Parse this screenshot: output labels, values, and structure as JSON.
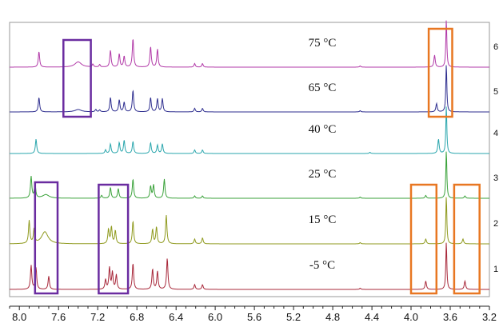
{
  "chart_data": {
    "type": "line",
    "title": "",
    "xlabel": "",
    "ylabel": "",
    "x_axis": {
      "direction": "reversed",
      "range_ppm": [
        8.1,
        3.2
      ],
      "tick_labels": [
        "8.0",
        "7.6",
        "7.2",
        "6.8",
        "6.4",
        "6.0",
        "5.6",
        "5.2",
        "4.8",
        "4.4",
        "4.0",
        "3.6",
        "3.2"
      ]
    },
    "right_edge_labels": [
      "6",
      "5",
      "4",
      "3",
      "2",
      "1"
    ],
    "colors": {
      "75": "#b23aa8",
      "65": "#2e2e8f",
      "40": "#2aa6ad",
      "25": "#3aa23a",
      "15": "#8f9a1e",
      "-5": "#a8283a",
      "box_purple": "#6a2ca0",
      "box_orange": "#e87722",
      "frame": "#9a9a9a"
    },
    "series": [
      {
        "name": "75 °C",
        "label": "75 °C",
        "color_key": "75",
        "peaks": [
          [
            7.8,
            0.65
          ],
          [
            7.4,
            0.22
          ],
          [
            7.25,
            0.12
          ],
          [
            7.18,
            0.1
          ],
          [
            7.07,
            0.7
          ],
          [
            6.98,
            0.55
          ],
          [
            6.93,
            0.45
          ],
          [
            6.84,
            1.2
          ],
          [
            6.66,
            0.85
          ],
          [
            6.59,
            0.75
          ],
          [
            6.21,
            0.15
          ],
          [
            6.13,
            0.15
          ],
          [
            4.52,
            0.05
          ],
          [
            3.76,
            0.5
          ],
          [
            3.64,
            2.0
          ]
        ]
      },
      {
        "name": "65 °C",
        "label": "65 °C",
        "color_key": "65",
        "peaks": [
          [
            7.8,
            0.6
          ],
          [
            7.4,
            0.1
          ],
          [
            7.22,
            0.1
          ],
          [
            7.18,
            0.08
          ],
          [
            7.07,
            0.6
          ],
          [
            6.98,
            0.5
          ],
          [
            6.93,
            0.4
          ],
          [
            6.84,
            0.9
          ],
          [
            6.66,
            0.6
          ],
          [
            6.59,
            0.55
          ],
          [
            6.54,
            0.55
          ],
          [
            6.21,
            0.15
          ],
          [
            6.13,
            0.15
          ],
          [
            4.52,
            0.05
          ],
          [
            3.74,
            0.35
          ],
          [
            3.64,
            2.0
          ]
        ]
      },
      {
        "name": "40 °C",
        "label": "40 °C",
        "color_key": "40",
        "peaks": [
          [
            7.83,
            0.6
          ],
          [
            7.12,
            0.15
          ],
          [
            7.07,
            0.4
          ],
          [
            6.98,
            0.45
          ],
          [
            6.93,
            0.55
          ],
          [
            6.84,
            0.5
          ],
          [
            6.66,
            0.45
          ],
          [
            6.59,
            0.35
          ],
          [
            6.54,
            0.4
          ],
          [
            6.21,
            0.15
          ],
          [
            6.13,
            0.15
          ],
          [
            4.42,
            0.05
          ],
          [
            3.72,
            0.6
          ],
          [
            3.64,
            2.0
          ]
        ]
      },
      {
        "name": "25 °C",
        "label": "25 °C",
        "color_key": "25",
        "peaks": [
          [
            7.88,
            0.9
          ],
          [
            7.84,
            0.6
          ],
          [
            7.73,
            0.15
          ],
          [
            7.16,
            0.12
          ],
          [
            7.07,
            0.45
          ],
          [
            6.99,
            0.4
          ],
          [
            6.84,
            0.8
          ],
          [
            6.66,
            0.5
          ],
          [
            6.63,
            0.55
          ],
          [
            6.52,
            0.8
          ],
          [
            6.21,
            0.1
          ],
          [
            6.13,
            0.1
          ],
          [
            4.52,
            0.05
          ],
          [
            3.85,
            0.12
          ],
          [
            3.64,
            2.0
          ],
          [
            3.45,
            0.1
          ]
        ]
      },
      {
        "name": "15 °C",
        "label": "15 °C",
        "color_key": "15",
        "peaks": [
          [
            7.9,
            0.95
          ],
          [
            7.85,
            0.6
          ],
          [
            7.74,
            0.5
          ],
          [
            7.09,
            0.6
          ],
          [
            7.06,
            0.7
          ],
          [
            7.02,
            0.55
          ],
          [
            6.84,
            0.95
          ],
          [
            6.64,
            0.6
          ],
          [
            6.6,
            0.7
          ],
          [
            6.5,
            1.2
          ],
          [
            6.21,
            0.2
          ],
          [
            6.13,
            0.25
          ],
          [
            4.52,
            0.05
          ],
          [
            3.85,
            0.2
          ],
          [
            3.64,
            2.0
          ],
          [
            3.47,
            0.2
          ]
        ]
      },
      {
        "name": "-5 °C",
        "label": "-5 °C",
        "color_key": "-5",
        "peaks": [
          [
            7.88,
            1.0
          ],
          [
            7.83,
            0.9
          ],
          [
            7.7,
            0.55
          ],
          [
            7.12,
            0.4
          ],
          [
            7.08,
            0.9
          ],
          [
            7.05,
            0.7
          ],
          [
            7.01,
            0.6
          ],
          [
            6.84,
            1.1
          ],
          [
            6.64,
            0.85
          ],
          [
            6.59,
            0.75
          ],
          [
            6.49,
            1.3
          ],
          [
            6.21,
            0.2
          ],
          [
            6.13,
            0.2
          ],
          [
            4.52,
            0.05
          ],
          [
            3.85,
            0.35
          ],
          [
            3.64,
            2.0
          ],
          [
            3.45,
            0.35
          ]
        ]
      }
    ]
  }
}
